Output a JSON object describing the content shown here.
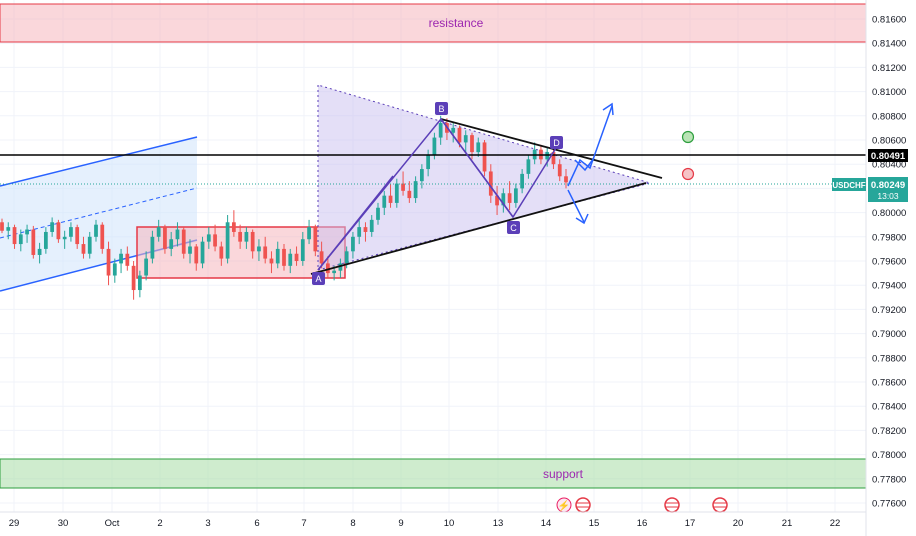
{
  "chart_data": {
    "type": "candlestick",
    "symbol": "USDCHF",
    "y_ticks": [
      "0.81600",
      "0.81400",
      "0.81200",
      "0.81000",
      "0.80800",
      "0.80600",
      "0.80400",
      "0.80200",
      "0.80000",
      "0.79800",
      "0.79600",
      "0.79400",
      "0.79200",
      "0.79000",
      "0.78800",
      "0.78600",
      "0.78400",
      "0.78200",
      "0.78000",
      "0.77800",
      "0.77600"
    ],
    "x_ticks": [
      "29",
      "30",
      "Oct",
      "2",
      "3",
      "6",
      "7",
      "8",
      "9",
      "10",
      "13",
      "14",
      "15",
      "16",
      "17",
      "20",
      "21",
      "22"
    ],
    "ylim": [
      0.776,
      0.8172
    ],
    "current_price": "0.80249",
    "countdown": "13:03",
    "line_price": "0.80491",
    "zones": {
      "resistance": {
        "label": "resistance",
        "from": 0.8142,
        "to": 0.8172
      },
      "support": {
        "label": "support",
        "from": 0.7773,
        "to": 0.7797
      }
    },
    "pattern_points": [
      {
        "label": "A",
        "x": 7.3,
        "y": 0.795
      },
      {
        "label": "B",
        "x": 9.8,
        "y": 0.8078
      },
      {
        "label": "C",
        "x": 13.35,
        "y": 0.7998
      },
      {
        "label": "D",
        "x": 14.2,
        "y": 0.8056
      }
    ],
    "candles": [
      [
        0.7992,
        0.7995,
        0.7983,
        0.7985
      ],
      [
        0.7985,
        0.7992,
        0.7978,
        0.7988
      ],
      [
        0.7988,
        0.799,
        0.797,
        0.7974
      ],
      [
        0.7974,
        0.7986,
        0.7968,
        0.7982
      ],
      [
        0.7982,
        0.799,
        0.7975,
        0.7986
      ],
      [
        0.7986,
        0.7989,
        0.7962,
        0.7965
      ],
      [
        0.7965,
        0.7975,
        0.7958,
        0.797
      ],
      [
        0.797,
        0.7988,
        0.7966,
        0.7984
      ],
      [
        0.7984,
        0.7996,
        0.798,
        0.7992
      ],
      [
        0.7992,
        0.7994,
        0.7975,
        0.7978
      ],
      [
        0.7978,
        0.7985,
        0.797,
        0.798
      ],
      [
        0.798,
        0.7992,
        0.7976,
        0.7988
      ],
      [
        0.7988,
        0.799,
        0.797,
        0.7974
      ],
      [
        0.7974,
        0.798,
        0.7962,
        0.7966
      ],
      [
        0.7966,
        0.7984,
        0.7962,
        0.798
      ],
      [
        0.798,
        0.7994,
        0.7976,
        0.799
      ],
      [
        0.799,
        0.7992,
        0.7966,
        0.797
      ],
      [
        0.797,
        0.7976,
        0.794,
        0.7948
      ],
      [
        0.7948,
        0.7962,
        0.7942,
        0.7958
      ],
      [
        0.7958,
        0.797,
        0.795,
        0.7966
      ],
      [
        0.7966,
        0.7972,
        0.7952,
        0.7956
      ],
      [
        0.7956,
        0.796,
        0.7928,
        0.7936
      ],
      [
        0.7936,
        0.7952,
        0.793,
        0.7948
      ],
      [
        0.7948,
        0.7968,
        0.7944,
        0.7962
      ],
      [
        0.7962,
        0.7985,
        0.7958,
        0.798
      ],
      [
        0.798,
        0.7994,
        0.7976,
        0.7988
      ],
      [
        0.7988,
        0.799,
        0.7966,
        0.797
      ],
      [
        0.797,
        0.7984,
        0.7964,
        0.7978
      ],
      [
        0.7978,
        0.7992,
        0.7972,
        0.7986
      ],
      [
        0.7986,
        0.7988,
        0.7962,
        0.7966
      ],
      [
        0.7966,
        0.7978,
        0.7958,
        0.7972
      ],
      [
        0.7972,
        0.7974,
        0.7952,
        0.7958
      ],
      [
        0.7958,
        0.798,
        0.7954,
        0.7976
      ],
      [
        0.7976,
        0.7988,
        0.797,
        0.7982
      ],
      [
        0.7982,
        0.799,
        0.7968,
        0.7972
      ],
      [
        0.7972,
        0.7976,
        0.7956,
        0.7962
      ],
      [
        0.7962,
        0.7998,
        0.7958,
        0.7992
      ],
      [
        0.7992,
        0.8002,
        0.798,
        0.7984
      ],
      [
        0.7984,
        0.799,
        0.797,
        0.7976
      ],
      [
        0.7976,
        0.7988,
        0.797,
        0.7984
      ],
      [
        0.7984,
        0.7986,
        0.7962,
        0.7968
      ],
      [
        0.7968,
        0.7978,
        0.796,
        0.7972
      ],
      [
        0.7972,
        0.798,
        0.7958,
        0.7962
      ],
      [
        0.7962,
        0.7968,
        0.795,
        0.7958
      ],
      [
        0.7958,
        0.7976,
        0.7954,
        0.797
      ],
      [
        0.797,
        0.7974,
        0.7952,
        0.7956
      ],
      [
        0.7956,
        0.797,
        0.795,
        0.7966
      ],
      [
        0.7966,
        0.7972,
        0.7956,
        0.796
      ],
      [
        0.796,
        0.7984,
        0.7956,
        0.7978
      ],
      [
        0.7978,
        0.7994,
        0.7974,
        0.7988
      ],
      [
        0.7988,
        0.799,
        0.7964,
        0.7968
      ],
      [
        0.7968,
        0.7976,
        0.7954,
        0.7958
      ],
      [
        0.7958,
        0.7964,
        0.7946,
        0.795
      ],
      [
        0.795,
        0.7956,
        0.7944,
        0.7952
      ],
      [
        0.7952,
        0.7962,
        0.7946,
        0.7958
      ],
      [
        0.7958,
        0.7972,
        0.7954,
        0.7968
      ],
      [
        0.7968,
        0.7984,
        0.7962,
        0.798
      ],
      [
        0.798,
        0.7994,
        0.7974,
        0.7988
      ],
      [
        0.7988,
        0.7992,
        0.7976,
        0.7984
      ],
      [
        0.7984,
        0.7998,
        0.798,
        0.7994
      ],
      [
        0.7994,
        0.8008,
        0.799,
        0.8004
      ],
      [
        0.8004,
        0.8018,
        0.7998,
        0.8014
      ],
      [
        0.8014,
        0.8024,
        0.8004,
        0.8008
      ],
      [
        0.8008,
        0.8028,
        0.8004,
        0.8024
      ],
      [
        0.8024,
        0.8034,
        0.8014,
        0.8018
      ],
      [
        0.8018,
        0.8026,
        0.8008,
        0.8012
      ],
      [
        0.8012,
        0.803,
        0.8008,
        0.8026
      ],
      [
        0.8026,
        0.804,
        0.802,
        0.8036
      ],
      [
        0.8036,
        0.8052,
        0.803,
        0.8048
      ],
      [
        0.8048,
        0.8066,
        0.8044,
        0.8062
      ],
      [
        0.8062,
        0.808,
        0.8056,
        0.8074
      ],
      [
        0.8074,
        0.8078,
        0.806,
        0.8066
      ],
      [
        0.8066,
        0.8074,
        0.8058,
        0.807
      ],
      [
        0.807,
        0.8072,
        0.8054,
        0.8058
      ],
      [
        0.8058,
        0.8068,
        0.805,
        0.8064
      ],
      [
        0.8064,
        0.8066,
        0.8044,
        0.805
      ],
      [
        0.805,
        0.8062,
        0.8046,
        0.8058
      ],
      [
        0.8058,
        0.806,
        0.803,
        0.8034
      ],
      [
        0.8034,
        0.804,
        0.8008,
        0.8014
      ],
      [
        0.8014,
        0.8022,
        0.7998,
        0.8006
      ],
      [
        0.8006,
        0.802,
        0.8,
        0.8016
      ],
      [
        0.8016,
        0.8026,
        0.8002,
        0.8008
      ],
      [
        0.8008,
        0.8024,
        0.8004,
        0.802
      ],
      [
        0.802,
        0.8036,
        0.8016,
        0.8032
      ],
      [
        0.8032,
        0.8048,
        0.8028,
        0.8044
      ],
      [
        0.8044,
        0.8058,
        0.804,
        0.8052
      ],
      [
        0.8052,
        0.8056,
        0.804,
        0.8044
      ],
      [
        0.8044,
        0.8054,
        0.8038,
        0.805
      ],
      [
        0.805,
        0.8056,
        0.8036,
        0.804
      ],
      [
        0.804,
        0.8044,
        0.8026,
        0.803
      ],
      [
        0.803,
        0.8036,
        0.802,
        0.8025
      ]
    ]
  }
}
